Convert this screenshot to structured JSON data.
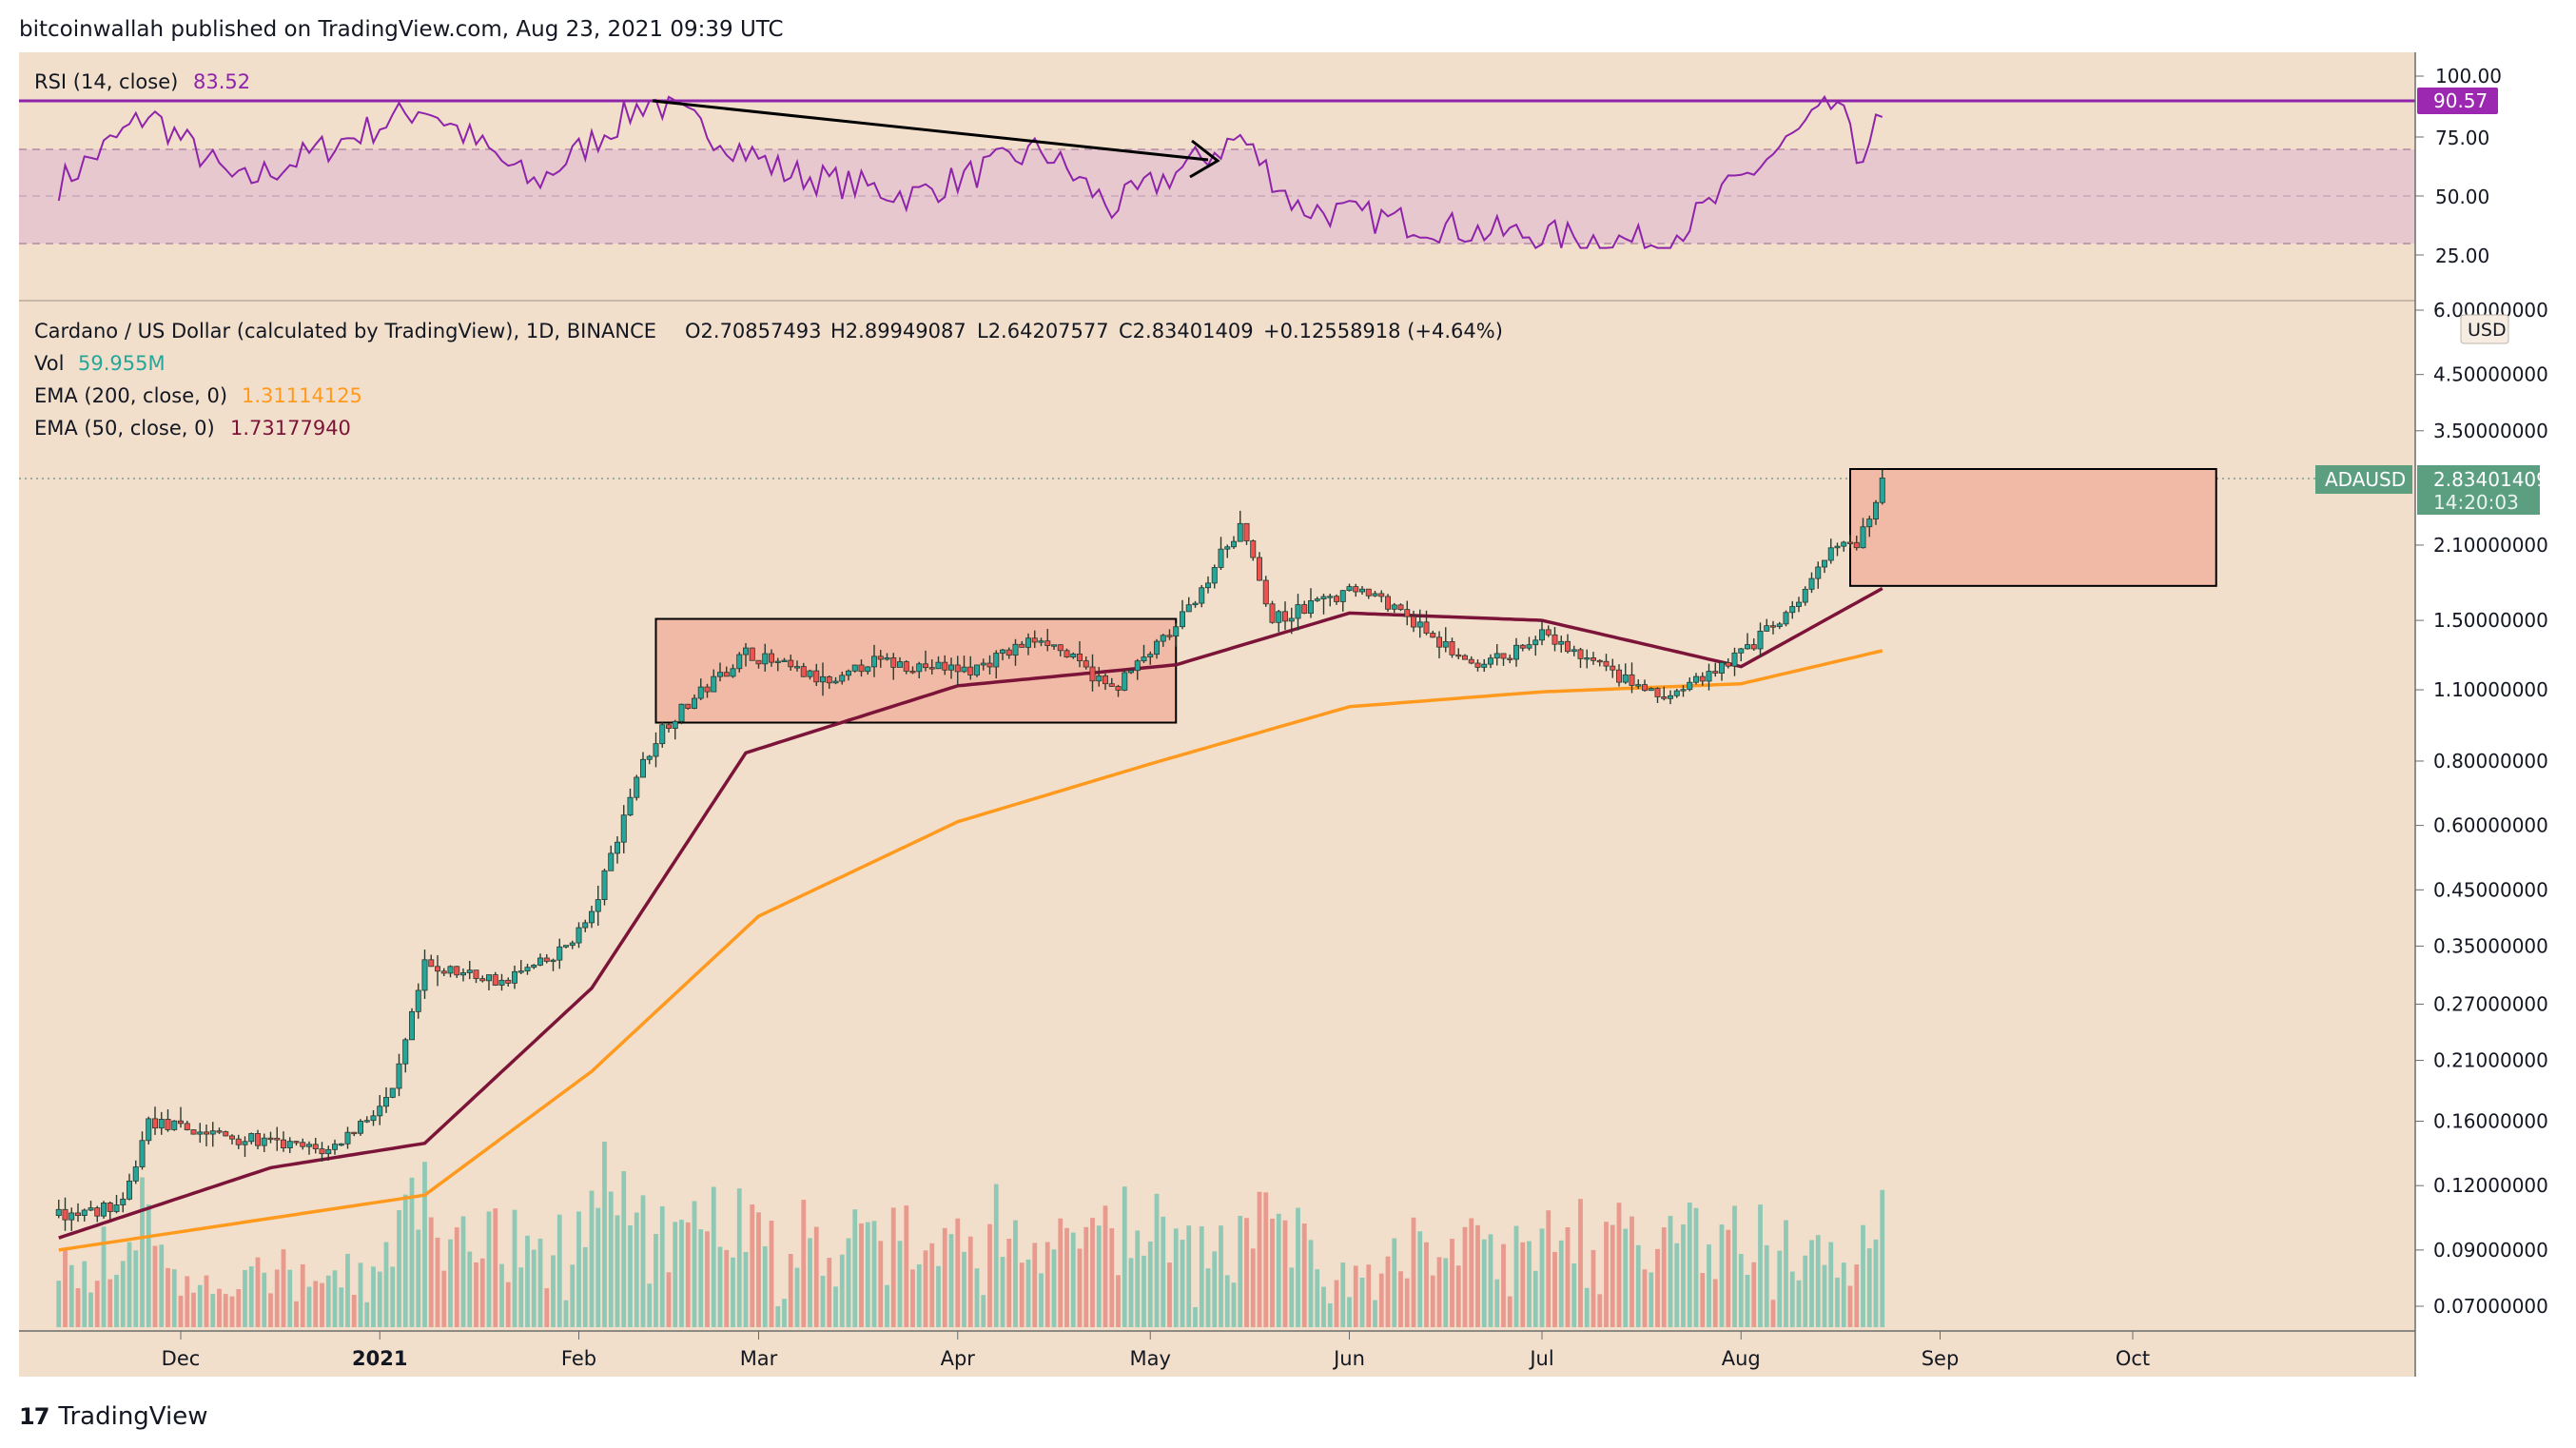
{
  "header": {
    "published": "bitcoinwallah published on TradingView.com, Aug 23, 2021 09:39 UTC"
  },
  "footer": {
    "brand": "TradingView",
    "logo_glyph": "17"
  },
  "colors": {
    "background": "#f2dfcb",
    "rsi_line": "#8e24aa",
    "rsi_band": "#e8c8cf",
    "up": "#26a69a",
    "down": "#ef5350",
    "candle": "#2b3a2f",
    "ema50": "#7b1438",
    "ema200": "#ff9a1f",
    "box_fill": "#f0baa6",
    "price_tag": "#5b9e80",
    "rsi_tag": "#9c27b0"
  },
  "rsi_panel": {
    "label": "RSI (14, close)",
    "value": "83.52",
    "ticks": [
      "100.00",
      "75.00",
      "50.00",
      "25.00"
    ],
    "level_tag": "90.57"
  },
  "price_panel": {
    "symbol_line": "Cardano / US Dollar (calculated by TradingView), 1D, BINANCE",
    "o": "O2.70857493",
    "h": "H2.89949087",
    "l": "L2.64207577",
    "c": "C2.83401409",
    "change": "+0.12558918 (+4.64%)",
    "vol_label": "Vol",
    "vol_value": "59.955M",
    "ema200_label": "EMA (200, close, 0)",
    "ema200_value": "1.31114125",
    "ema50_label": "EMA (50, close, 0)",
    "ema50_value": "1.73177940",
    "currency": "USD",
    "price_ticks": [
      "6.00000000",
      "4.50000000",
      "3.50000000",
      "2.10000000",
      "1.50000000",
      "1.10000000",
      "0.80000000",
      "0.60000000",
      "0.45000000",
      "0.35000000",
      "0.27000000",
      "0.21000000",
      "0.16000000",
      "0.12000000",
      "0.09000000",
      "0.07000000"
    ],
    "last_tag_symbol": "ADAUSD",
    "last_price": "2.83401409",
    "countdown": "14:20:03"
  },
  "x_axis": {
    "labels": [
      "Dec",
      "2021",
      "Feb",
      "Mar",
      "Apr",
      "May",
      "Jun",
      "Jul",
      "Aug",
      "Sep",
      "Oct"
    ]
  },
  "chart_data": {
    "type": "candlestick",
    "symbol": "ADAUSD",
    "interval": "1D",
    "scale": "log",
    "ylim": [
      0.065,
      6.0
    ],
    "overlays": [
      "EMA 200",
      "EMA 50"
    ],
    "close_path_points": [
      {
        "date": "2020-11-12",
        "price": 0.105
      },
      {
        "date": "2020-11-22",
        "price": 0.11
      },
      {
        "date": "2020-11-26",
        "price": 0.16
      },
      {
        "date": "2020-12-01",
        "price": 0.155
      },
      {
        "date": "2020-12-15",
        "price": 0.145
      },
      {
        "date": "2020-12-24",
        "price": 0.14
      },
      {
        "date": "2021-01-03",
        "price": 0.18
      },
      {
        "date": "2021-01-08",
        "price": 0.32
      },
      {
        "date": "2021-01-20",
        "price": 0.3
      },
      {
        "date": "2021-01-28",
        "price": 0.33
      },
      {
        "date": "2021-02-03",
        "price": 0.4
      },
      {
        "date": "2021-02-10",
        "price": 0.75
      },
      {
        "date": "2021-02-14",
        "price": 0.93
      },
      {
        "date": "2021-02-27",
        "price": 1.3
      },
      {
        "date": "2021-03-13",
        "price": 1.12
      },
      {
        "date": "2021-03-18",
        "price": 1.25
      },
      {
        "date": "2021-04-03",
        "price": 1.2
      },
      {
        "date": "2021-04-14",
        "price": 1.4
      },
      {
        "date": "2021-04-25",
        "price": 1.1
      },
      {
        "date": "2021-05-05",
        "price": 1.45
      },
      {
        "date": "2021-05-15",
        "price": 2.3
      },
      {
        "date": "2021-05-20",
        "price": 1.5
      },
      {
        "date": "2021-06-03",
        "price": 1.75
      },
      {
        "date": "2021-06-21",
        "price": 1.2
      },
      {
        "date": "2021-07-01",
        "price": 1.4
      },
      {
        "date": "2021-07-20",
        "price": 1.05
      },
      {
        "date": "2021-08-01",
        "price": 1.3
      },
      {
        "date": "2021-08-10",
        "price": 1.6
      },
      {
        "date": "2021-08-16",
        "price": 2.15
      },
      {
        "date": "2021-08-19",
        "price": 2.05
      },
      {
        "date": "2021-08-23",
        "price": 2.834
      }
    ],
    "ema50_points": [
      {
        "date": "2020-11-12",
        "price": 0.095
      },
      {
        "date": "2020-12-15",
        "price": 0.13
      },
      {
        "date": "2021-01-08",
        "price": 0.145
      },
      {
        "date": "2021-02-03",
        "price": 0.29
      },
      {
        "date": "2021-02-27",
        "price": 0.83
      },
      {
        "date": "2021-04-01",
        "price": 1.12
      },
      {
        "date": "2021-05-05",
        "price": 1.23
      },
      {
        "date": "2021-06-01",
        "price": 1.55
      },
      {
        "date": "2021-07-01",
        "price": 1.5
      },
      {
        "date": "2021-08-01",
        "price": 1.22
      },
      {
        "date": "2021-08-23",
        "price": 1.73
      }
    ],
    "ema200_points": [
      {
        "date": "2020-11-12",
        "price": 0.09
      },
      {
        "date": "2021-01-08",
        "price": 0.115
      },
      {
        "date": "2021-02-03",
        "price": 0.2
      },
      {
        "date": "2021-03-01",
        "price": 0.4
      },
      {
        "date": "2021-04-01",
        "price": 0.61
      },
      {
        "date": "2021-05-01",
        "price": 0.79
      },
      {
        "date": "2021-06-01",
        "price": 1.02
      },
      {
        "date": "2021-07-01",
        "price": 1.09
      },
      {
        "date": "2021-08-01",
        "price": 1.13
      },
      {
        "date": "2021-08-23",
        "price": 1.31
      }
    ],
    "rsi_points": [
      {
        "date": "2020-11-12",
        "rsi": 55
      },
      {
        "date": "2020-11-26",
        "rsi": 85
      },
      {
        "date": "2020-12-10",
        "rsi": 55
      },
      {
        "date": "2021-01-08",
        "rsi": 88
      },
      {
        "date": "2021-01-25",
        "rsi": 55
      },
      {
        "date": "2021-02-12",
        "rsi": 91
      },
      {
        "date": "2021-03-05",
        "rsi": 60
      },
      {
        "date": "2021-03-25",
        "rsi": 50
      },
      {
        "date": "2021-04-14",
        "rsi": 70
      },
      {
        "date": "2021-04-25",
        "rsi": 45
      },
      {
        "date": "2021-05-15",
        "rsi": 75
      },
      {
        "date": "2021-05-24",
        "rsi": 45
      },
      {
        "date": "2021-06-21",
        "rsi": 35
      },
      {
        "date": "2021-07-20",
        "rsi": 30
      },
      {
        "date": "2021-08-16",
        "rsi": 90
      },
      {
        "date": "2021-08-19",
        "rsi": 66
      },
      {
        "date": "2021-08-23",
        "rsi": 83.5
      }
    ],
    "rsi_levels": {
      "upper": 70,
      "middle": 50,
      "lower": 30,
      "marked": 90.57
    },
    "annotations": [
      {
        "type": "range_box",
        "from": "2021-02-13",
        "to": "2021-05-05",
        "low": 0.95,
        "high": 1.51
      },
      {
        "type": "target_box",
        "from": "2021-08-18",
        "to": "2021-10-14",
        "low": 1.75,
        "high": 2.95
      },
      {
        "type": "rsi_divergence_arrow",
        "from": "2021-02-12",
        "to": "2021-05-05"
      }
    ]
  }
}
